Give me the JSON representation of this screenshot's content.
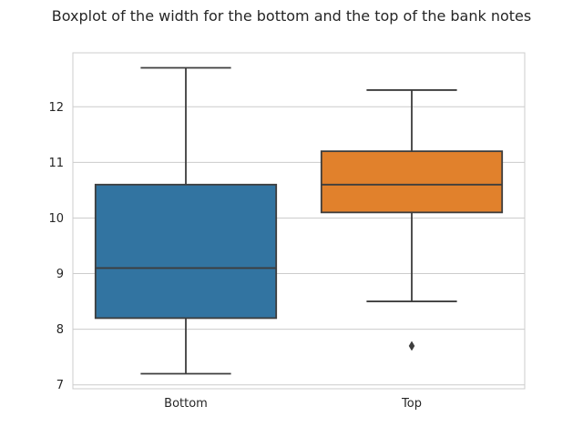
{
  "chart_data": {
    "type": "boxplot",
    "title": "Boxplot of the width for the bottom and the top of the bank notes",
    "xlabel": "",
    "ylabel": "",
    "categories": [
      "Bottom",
      "Top"
    ],
    "boxes": [
      {
        "category": "Bottom",
        "whisker_low": 7.2,
        "q1": 8.2,
        "median": 9.1,
        "q3": 10.6,
        "whisker_high": 12.7,
        "outliers": [],
        "color": "#3274a1"
      },
      {
        "category": "Top",
        "whisker_low": 8.5,
        "q1": 10.1,
        "median": 10.6,
        "q3": 11.2,
        "whisker_high": 12.3,
        "outliers": [
          7.7
        ],
        "color": "#e1812c"
      }
    ],
    "yticks": [
      7,
      8,
      9,
      10,
      11,
      12
    ],
    "ylim": [
      6.93,
      12.97
    ],
    "grid": "horizontal",
    "legend": "none"
  }
}
